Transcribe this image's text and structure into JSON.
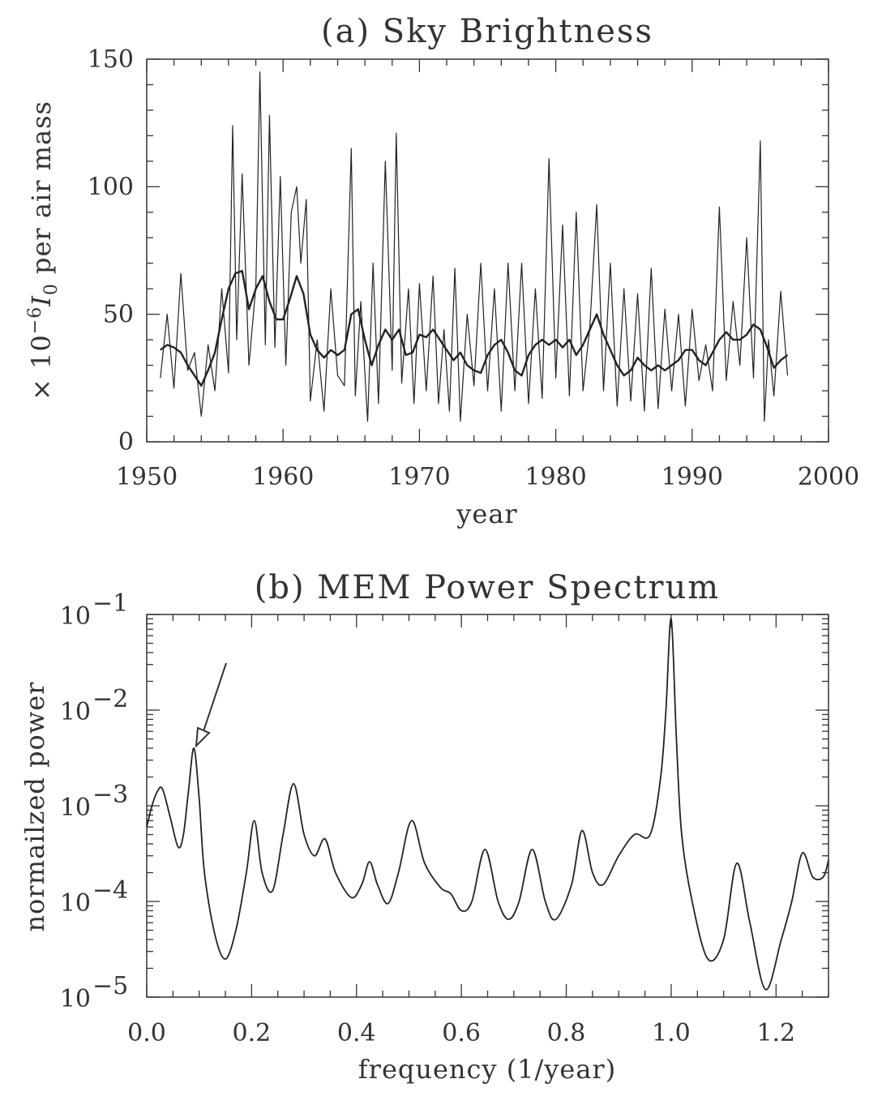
{
  "chart_data": [
    {
      "type": "line",
      "title": "(a) Sky Brightness",
      "xlabel": "year",
      "ylabel": "× 10⁻⁶ I₀ per air mass",
      "xlim": [
        1950,
        2000
      ],
      "ylim": [
        0,
        150
      ],
      "xticks": [
        "1950",
        "1960",
        "1970",
        "1980",
        "1990",
        "2000"
      ],
      "yticks": [
        "0",
        "50",
        "100",
        "150"
      ],
      "grid": false,
      "series": [
        {
          "x": [
            1951.0,
            1951.5,
            1952.0,
            1952.5,
            1953.0,
            1953.5,
            1954.0,
            1954.5,
            1955.0,
            1955.5,
            1956.0,
            1956.3,
            1956.6,
            1957.0,
            1957.5,
            1958.0,
            1958.3,
            1958.7,
            1959.0,
            1959.4,
            1959.8,
            1960.2,
            1960.6,
            1961.0,
            1961.3,
            1961.7,
            1962.0,
            1962.5,
            1963.0,
            1963.5,
            1964.0,
            1964.5,
            1965.0,
            1965.3,
            1965.7,
            1966.2,
            1966.6,
            1967.0,
            1967.5,
            1968.0,
            1968.3,
            1968.7,
            1969.2,
            1969.6,
            1970.0,
            1970.5,
            1971.0,
            1971.4,
            1971.8,
            1972.2,
            1972.6,
            1973.0,
            1973.5,
            1974.0,
            1974.5,
            1975.0,
            1975.5,
            1976.0,
            1976.5,
            1977.0,
            1977.5,
            1978.0,
            1978.5,
            1979.0,
            1979.5,
            1980.0,
            1980.5,
            1981.0,
            1981.5,
            1982.0,
            1982.5,
            1983.0,
            1983.5,
            1984.0,
            1984.5,
            1985.0,
            1985.5,
            1986.0,
            1986.5,
            1987.0,
            1987.5,
            1988.0,
            1988.5,
            1989.0,
            1989.5,
            1990.0,
            1990.5,
            1991.0,
            1991.5,
            1992.0,
            1992.5,
            1993.0,
            1993.5,
            1994.0,
            1994.5,
            1995.0,
            1995.3,
            1995.6,
            1996.0,
            1996.5,
            1997.0
          ],
          "y": [
            25,
            50,
            21,
            66,
            28,
            35,
            10,
            38,
            20,
            60,
            27,
            124,
            40,
            105,
            30,
            61,
            145,
            38,
            128,
            37,
            104,
            30,
            90,
            100,
            70,
            95,
            16,
            40,
            12,
            60,
            26,
            22,
            115,
            18,
            55,
            8,
            70,
            15,
            110,
            28,
            121,
            23,
            60,
            15,
            62,
            20,
            65,
            15,
            44,
            12,
            68,
            8,
            50,
            22,
            70,
            20,
            60,
            12,
            70,
            20,
            70,
            15,
            60,
            17,
            111,
            25,
            85,
            18,
            90,
            20,
            45,
            93,
            20,
            70,
            14,
            60,
            16,
            58,
            12,
            68,
            13,
            52,
            20,
            50,
            14,
            52,
            24,
            38,
            20,
            92,
            24,
            55,
            30,
            80,
            25,
            118,
            8,
            40,
            18,
            59,
            26
          ]
        },
        {
          "x": [
            1951.0,
            1951.5,
            1952.0,
            1952.5,
            1953.0,
            1953.5,
            1954.0,
            1954.5,
            1955.0,
            1955.5,
            1956.0,
            1956.5,
            1957.0,
            1957.5,
            1958.0,
            1958.5,
            1959.0,
            1959.5,
            1960.0,
            1960.5,
            1961.0,
            1961.5,
            1962.0,
            1962.5,
            1963.0,
            1963.5,
            1964.0,
            1964.5,
            1965.0,
            1965.5,
            1966.0,
            1966.5,
            1967.0,
            1967.5,
            1968.0,
            1968.5,
            1969.0,
            1969.5,
            1970.0,
            1970.5,
            1971.0,
            1971.5,
            1972.0,
            1972.5,
            1973.0,
            1973.5,
            1974.0,
            1974.5,
            1975.0,
            1975.5,
            1976.0,
            1976.5,
            1977.0,
            1977.5,
            1978.0,
            1978.5,
            1979.0,
            1979.5,
            1980.0,
            1980.5,
            1981.0,
            1981.5,
            1982.0,
            1982.5,
            1983.0,
            1983.5,
            1984.0,
            1984.5,
            1985.0,
            1985.5,
            1986.0,
            1986.5,
            1987.0,
            1987.5,
            1988.0,
            1988.5,
            1989.0,
            1989.5,
            1990.0,
            1990.5,
            1991.0,
            1991.5,
            1992.0,
            1992.5,
            1993.0,
            1993.5,
            1994.0,
            1994.5,
            1995.0,
            1995.5,
            1996.0,
            1996.5,
            1997.0
          ],
          "y": [
            36,
            38,
            37,
            35,
            30,
            26,
            22,
            28,
            35,
            48,
            60,
            66,
            67,
            52,
            60,
            65,
            55,
            48,
            48,
            56,
            65,
            58,
            42,
            36,
            33,
            36,
            34,
            36,
            50,
            52,
            40,
            30,
            38,
            44,
            40,
            44,
            34,
            35,
            42,
            41,
            44,
            40,
            36,
            32,
            35,
            30,
            28,
            27,
            34,
            38,
            40,
            35,
            28,
            26,
            34,
            38,
            40,
            38,
            40,
            37,
            40,
            34,
            38,
            44,
            50,
            42,
            36,
            30,
            26,
            28,
            33,
            30,
            28,
            30,
            28,
            30,
            32,
            36,
            36,
            32,
            30,
            35,
            40,
            43,
            40,
            40,
            42,
            46,
            44,
            37,
            29,
            32,
            34
          ]
        }
      ]
    },
    {
      "type": "line",
      "title": "(b) MEM Power Spectrum",
      "xlabel": "frequency (1/year)",
      "ylabel": "normailzed power",
      "xlim": [
        0.0,
        1.3
      ],
      "ylim": [
        1e-05,
        0.1
      ],
      "log_y": true,
      "xticks": [
        "0.0",
        "0.2",
        "0.4",
        "0.6",
        "0.8",
        "1.0",
        "1.2"
      ],
      "grid": false,
      "annotation": "arrow pointing to peak near 0.09",
      "series": [
        {
          "x": [
            0.0,
            0.01,
            0.02,
            0.03,
            0.045,
            0.06,
            0.07,
            0.08,
            0.09,
            0.1,
            0.11,
            0.13,
            0.15,
            0.17,
            0.19,
            0.205,
            0.22,
            0.24,
            0.26,
            0.28,
            0.3,
            0.32,
            0.34,
            0.36,
            0.39,
            0.41,
            0.425,
            0.44,
            0.46,
            0.48,
            0.505,
            0.53,
            0.56,
            0.58,
            0.6,
            0.62,
            0.645,
            0.67,
            0.69,
            0.71,
            0.735,
            0.76,
            0.78,
            0.81,
            0.83,
            0.85,
            0.87,
            0.9,
            0.93,
            0.96,
            0.98,
            0.99,
            1.0,
            1.01,
            1.02,
            1.04,
            1.07,
            1.1,
            1.125,
            1.15,
            1.18,
            1.21,
            1.23,
            1.25,
            1.27,
            1.29,
            1.3
          ],
          "y": [
            0.0006,
            0.001,
            0.0014,
            0.0015,
            0.00075,
            0.00037,
            0.0005,
            0.0015,
            0.004,
            0.0012,
            0.0002,
            4.5e-05,
            2.5e-05,
            5e-05,
            0.0002,
            0.0007,
            0.0002,
            0.00013,
            0.0005,
            0.0017,
            0.0005,
            0.0003,
            0.00045,
            0.0002,
            0.00011,
            0.00015,
            0.00026,
            0.00015,
            9.5e-05,
            0.0002,
            0.0007,
            0.00025,
            0.00014,
            0.00012,
            8e-05,
            0.0001,
            0.00035,
            0.0001,
            6.5e-05,
            0.0001,
            0.00035,
            0.0001,
            6.5e-05,
            0.00015,
            0.00055,
            0.0002,
            0.00015,
            0.0003,
            0.0005,
            0.0005,
            0.002,
            0.01,
            0.09,
            0.005,
            0.0005,
            0.0001,
            2.5e-05,
            4e-05,
            0.00025,
            6e-05,
            1.2e-05,
            4e-05,
            0.0001,
            0.00032,
            0.00018,
            0.00018,
            0.00027
          ]
        }
      ]
    }
  ]
}
